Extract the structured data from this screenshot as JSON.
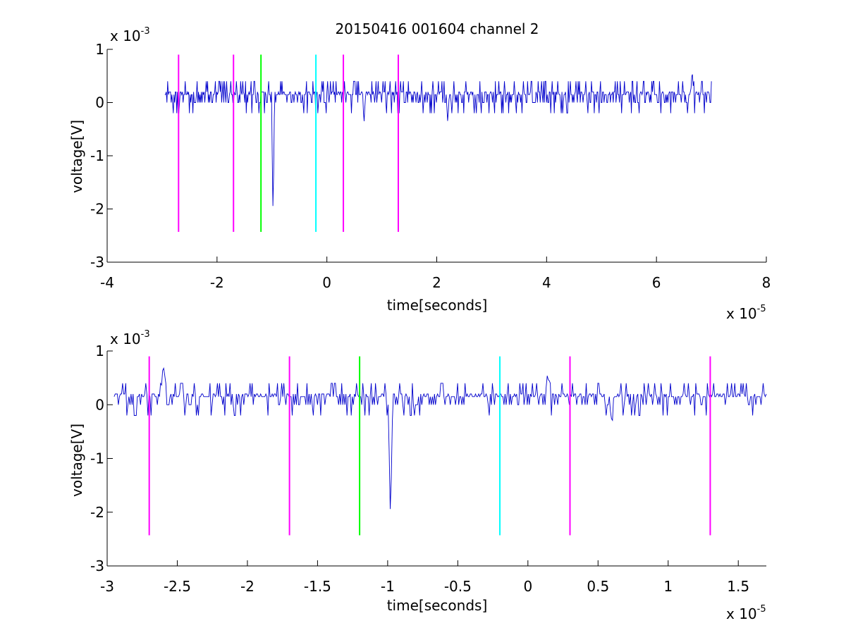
{
  "chart_data": [
    {
      "type": "line",
      "title": "20150416 001604 channel 2",
      "xlabel": "time[seconds]",
      "ylabel": "voltage[V]",
      "x_multiplier": "x 10",
      "x_exponent": "-5",
      "y_multiplier": "x 10",
      "y_exponent": "-3",
      "xlim": [
        -4,
        8
      ],
      "ylim": [
        -3,
        1
      ],
      "xticks": [
        -4,
        -2,
        0,
        2,
        4,
        6,
        8
      ],
      "xtick_labels": [
        "-4",
        "-2",
        "0",
        "2",
        "4",
        "6",
        "8"
      ],
      "yticks": [
        1,
        0,
        -1,
        -2,
        -3
      ],
      "ytick_labels": [
        "1",
        "0",
        "-1",
        "-2",
        "-3"
      ],
      "grid": false,
      "signal": {
        "color": "#0000cc",
        "x_range": [
          -2.95,
          7.0
        ],
        "baseline": 0.15,
        "noise_step": 0.2,
        "noise_levels": [
          -0.2,
          0.0,
          0.2,
          0.4
        ],
        "spikes": [
          {
            "x": -0.98,
            "y": -2.2
          },
          {
            "x": 6.65,
            "y": 0.6
          },
          {
            "x": 0.68,
            "y": -0.4
          },
          {
            "x": 2.2,
            "y": -0.4
          }
        ]
      },
      "markers": [
        {
          "x": -2.7,
          "color": "#ff00ff"
        },
        {
          "x": -1.7,
          "color": "#ff00ff"
        },
        {
          "x": -1.2,
          "color": "#00ff00"
        },
        {
          "x": -0.2,
          "color": "#00ffff"
        },
        {
          "x": 0.3,
          "color": "#ff00ff"
        },
        {
          "x": 1.3,
          "color": "#ff00ff"
        }
      ],
      "marker_range": [
        -2.43,
        0.9
      ]
    },
    {
      "type": "line",
      "title": "",
      "xlabel": "time[seconds]",
      "ylabel": "voltage[V]",
      "x_multiplier": "x 10",
      "x_exponent": "-5",
      "y_multiplier": "x 10",
      "y_exponent": "-3",
      "xlim": [
        -3.0,
        1.7
      ],
      "ylim": [
        -3,
        1
      ],
      "xticks": [
        -3,
        -2.5,
        -2,
        -1.5,
        -1,
        -0.5,
        0,
        0.5,
        1,
        1.5
      ],
      "xtick_labels": [
        "-3",
        "-2.5",
        "-2",
        "-1.5",
        "-1",
        "-0.5",
        "0",
        "0.5",
        "1",
        "1.5"
      ],
      "yticks": [
        1,
        0,
        -1,
        -2,
        -3
      ],
      "ytick_labels": [
        "1",
        "0",
        "-1",
        "-2",
        "-3"
      ],
      "grid": false,
      "signal": {
        "color": "#0000cc",
        "x_range": [
          -2.95,
          1.7
        ],
        "baseline": 0.15,
        "noise_step": 0.2,
        "noise_levels": [
          -0.2,
          0.0,
          0.2,
          0.4
        ],
        "spikes": [
          {
            "x": -0.98,
            "y": -2.2
          },
          {
            "x": -2.6,
            "y": 0.8
          },
          {
            "x": 0.6,
            "y": -0.4
          },
          {
            "x": 0.14,
            "y": 0.6
          }
        ]
      },
      "markers": [
        {
          "x": -2.7,
          "color": "#ff00ff"
        },
        {
          "x": -1.7,
          "color": "#ff00ff"
        },
        {
          "x": -1.2,
          "color": "#00ff00"
        },
        {
          "x": -0.2,
          "color": "#00ffff"
        },
        {
          "x": 0.3,
          "color": "#ff00ff"
        },
        {
          "x": 1.3,
          "color": "#ff00ff"
        }
      ],
      "marker_range": [
        -2.43,
        0.9
      ]
    }
  ]
}
